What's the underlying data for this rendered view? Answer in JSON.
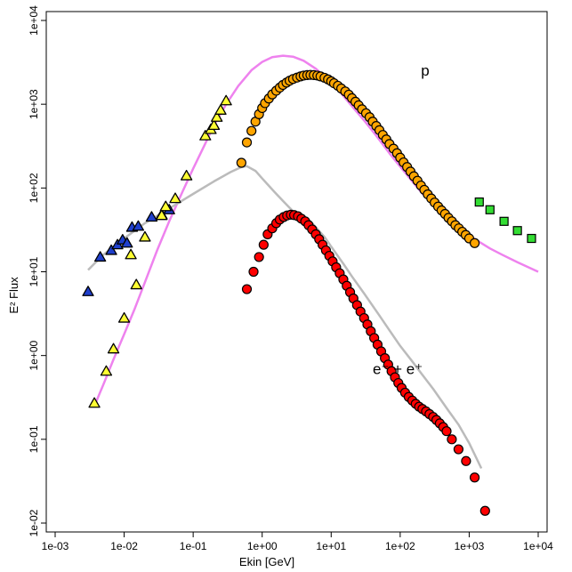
{
  "chart_data": {
    "type": "scatter",
    "title": "",
    "xlabel": "Ekin [GeV]",
    "ylabel": "E² Flux",
    "xscale": "log",
    "yscale": "log",
    "xlim": [
      0.001,
      10000
    ],
    "ylim": [
      0.01,
      10000
    ],
    "x_ticks": [
      0.001,
      0.01,
      0.1,
      1,
      10,
      100,
      1000,
      10000
    ],
    "x_tick_labels": [
      "1e-03",
      "1e-02",
      "1e-01",
      "1e+00",
      "1e+01",
      "1e+02",
      "1e+03",
      "1e+04"
    ],
    "y_ticks": [
      0.01,
      0.1,
      1,
      10,
      100,
      1000,
      10000
    ],
    "y_tick_labels": [
      "1e-02",
      "1e-01",
      "1e+00",
      "1e+01",
      "1e+02",
      "1e+03",
      "1e+04"
    ],
    "grid": false,
    "annotations": [
      {
        "text": "p",
        "x": 200,
        "y": 2200
      },
      {
        "text": "e⁻ + e⁺",
        "x": 40,
        "y": 0.6
      }
    ],
    "colors": {
      "orange": "#ffa500",
      "red": "#ff0000",
      "blue": "#1f3fcc",
      "yellow": "#ffff33",
      "green": "#33dd33",
      "violet": "#ee82ee",
      "gray": "#bbbbbb"
    },
    "series": [
      {
        "marker": "triangle",
        "color": "#1f3fcc",
        "x": [
          0.003,
          0.0045,
          0.0065,
          0.008,
          0.0095,
          0.011,
          0.013,
          0.016,
          0.025,
          0.035,
          0.045
        ],
        "y": [
          5.8,
          15,
          18,
          21,
          24,
          22,
          34,
          35,
          45,
          48,
          55
        ]
      },
      {
        "marker": "triangle",
        "color": "#ffff33",
        "x": [
          0.0037,
          0.0055,
          0.007,
          0.01,
          0.0125,
          0.015,
          0.02,
          0.035,
          0.04,
          0.055,
          0.08,
          0.15,
          0.18,
          0.2,
          0.22,
          0.25,
          0.3
        ],
        "y": [
          0.27,
          0.65,
          1.2,
          2.8,
          16,
          7,
          26,
          47,
          60,
          75,
          140,
          420,
          500,
          560,
          700,
          850,
          1100
        ]
      },
      {
        "marker": "circle",
        "color": "#ffa500",
        "x": [
          0.5,
          0.6,
          0.7,
          0.8,
          0.9,
          1,
          1.1,
          1.25,
          1.4,
          1.6,
          1.8,
          2,
          2.25,
          2.5,
          2.8,
          3.2,
          3.6,
          4,
          4.5,
          5,
          5.6,
          6.3,
          7,
          8,
          9,
          10,
          11,
          12.5,
          14,
          16,
          18,
          20,
          22.5,
          25,
          28,
          32,
          36,
          40,
          45,
          50,
          56,
          63,
          70,
          80,
          90,
          100,
          112,
          126,
          141,
          158,
          178,
          200,
          224,
          251,
          282,
          316,
          355,
          398,
          447,
          501,
          562,
          631,
          708,
          794,
          891,
          1000,
          1200
        ],
        "y": [
          200,
          350,
          480,
          620,
          760,
          900,
          1030,
          1170,
          1310,
          1450,
          1580,
          1700,
          1810,
          1910,
          2000,
          2080,
          2150,
          2200,
          2230,
          2240,
          2230,
          2200,
          2150,
          2070,
          1980,
          1880,
          1780,
          1660,
          1540,
          1420,
          1300,
          1180,
          1070,
          970,
          870,
          780,
          700,
          620,
          550,
          490,
          430,
          380,
          335,
          295,
          260,
          230,
          202,
          178,
          157,
          138,
          122,
          107,
          95,
          84,
          75,
          67,
          60,
          54,
          49,
          44,
          40,
          36,
          33,
          30,
          27.5,
          25,
          22
        ]
      },
      {
        "marker": "square",
        "color": "#33dd33",
        "x": [
          1400,
          2000,
          3200,
          5000,
          8000
        ],
        "y": [
          68,
          55,
          40,
          31,
          25
        ]
      },
      {
        "marker": "circle",
        "color": "#ff0000",
        "x": [
          0.6,
          0.75,
          0.9,
          1.05,
          1.2,
          1.4,
          1.6,
          1.8,
          2.05,
          2.3,
          2.6,
          2.9,
          3.3,
          3.7,
          4.2,
          4.7,
          5.3,
          6,
          6.7,
          7.5,
          8.4,
          9.4,
          10.5,
          11.8,
          13.3,
          15,
          16.8,
          18.8,
          21,
          23.7,
          26.6,
          30,
          33.5,
          37.5,
          42,
          47,
          53,
          60,
          67,
          75,
          84,
          94,
          105,
          118,
          133,
          150,
          168,
          188,
          210,
          237,
          266,
          300,
          335,
          375,
          420,
          470,
          560,
          700,
          900,
          1200,
          1700
        ],
        "y": [
          6.2,
          10,
          15,
          21,
          28,
          33,
          38,
          42,
          45,
          47,
          48,
          47.5,
          46,
          43,
          40,
          36,
          32,
          28,
          24.5,
          21,
          18,
          15.5,
          13.3,
          11.3,
          9.6,
          8.1,
          6.8,
          5.7,
          4.8,
          4,
          3.35,
          2.8,
          2.35,
          1.95,
          1.62,
          1.35,
          1.12,
          0.93,
          0.78,
          0.65,
          0.55,
          0.47,
          0.41,
          0.36,
          0.32,
          0.29,
          0.265,
          0.245,
          0.23,
          0.215,
          0.2,
          0.185,
          0.17,
          0.155,
          0.14,
          0.125,
          0.1,
          0.076,
          0.055,
          0.035,
          0.014
        ]
      }
    ],
    "curves": [
      {
        "color": "#ee82ee",
        "x": [
          0.0037,
          0.005,
          0.007,
          0.01,
          0.014,
          0.02,
          0.03,
          0.045,
          0.07,
          0.1,
          0.15,
          0.2,
          0.3,
          0.45,
          0.7,
          1,
          1.4,
          2,
          2.8,
          4,
          6,
          8,
          10,
          14,
          20,
          30,
          45,
          70,
          100,
          150,
          200,
          300,
          500,
          700,
          1000,
          1500,
          2000,
          3000,
          5000,
          10000
        ],
        "y": [
          0.25,
          0.45,
          0.9,
          1.8,
          3.5,
          7.5,
          18,
          40,
          90,
          170,
          340,
          560,
          1000,
          1650,
          2550,
          3200,
          3650,
          3800,
          3700,
          3300,
          2650,
          2150,
          1800,
          1350,
          950,
          640,
          420,
          260,
          180,
          120,
          90,
          63,
          42,
          34,
          27,
          22,
          19,
          16,
          13,
          10
        ]
      },
      {
        "color": "#bbbbbb",
        "x": [
          0.003,
          0.005,
          0.01,
          0.02,
          0.05,
          0.1,
          0.2,
          0.35,
          0.5,
          0.6,
          0.8,
          1,
          1.2,
          1.5,
          2,
          2.5,
          3,
          3.5,
          4,
          5,
          6,
          8,
          10,
          15,
          20,
          30,
          50,
          70,
          100,
          150,
          200,
          300,
          500,
          700,
          1000,
          1500
        ],
        "y": [
          10.5,
          16,
          25,
          38,
          60,
          85,
          120,
          155,
          178,
          182,
          160,
          130,
          110,
          90,
          70,
          58,
          50,
          47,
          45,
          40,
          34,
          26,
          20,
          12.5,
          8.8,
          5.5,
          3,
          2,
          1.3,
          0.85,
          0.62,
          0.4,
          0.22,
          0.15,
          0.09,
          0.045
        ]
      }
    ]
  }
}
